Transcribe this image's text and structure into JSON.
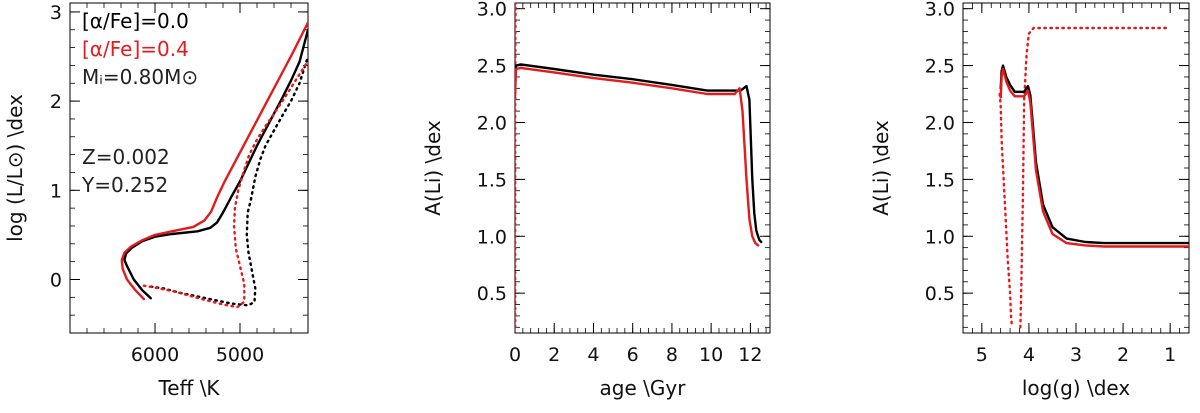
{
  "chart_data": [
    {
      "type": "line",
      "xlabel": "Teff \\K",
      "ylabel": "log (L/L⊙) \\dex",
      "xlim": [
        7000,
        4200
      ],
      "ylim": [
        -0.6,
        3.1
      ],
      "xticks": [
        6000,
        5000
      ],
      "yticks": [
        0,
        1,
        2,
        3
      ],
      "colors": {
        "black": "#000000",
        "red": "#e41a1c"
      },
      "annotations": [
        {
          "text": "[α/Fe]=0.0",
          "color": "#000000"
        },
        {
          "text": "[α/Fe]=0.4",
          "color": "#e41a1c"
        },
        {
          "text": "Mᵢ=0.80M⊙",
          "color": "#222222"
        },
        {
          "text": "Z=0.002",
          "color": "#222222"
        },
        {
          "text": "Y=0.252",
          "color": "#222222"
        }
      ],
      "series": [
        {
          "color": "#000000",
          "dash": "solid",
          "x": [
            6050,
            6150,
            6250,
            6330,
            6360,
            6340,
            6280,
            6150,
            6000,
            5800,
            5500,
            5350,
            5270,
            5200,
            5100,
            5000,
            4900,
            4800,
            4700,
            4600,
            4500,
            4400,
            4300,
            4200
          ],
          "y": [
            -0.21,
            -0.12,
            0.0,
            0.15,
            0.22,
            0.29,
            0.35,
            0.43,
            0.48,
            0.51,
            0.54,
            0.58,
            0.64,
            0.75,
            0.93,
            1.1,
            1.3,
            1.5,
            1.68,
            1.86,
            2.04,
            2.23,
            2.44,
            2.8
          ]
        },
        {
          "color": "#000000",
          "dash": "dotted",
          "x": [
            6050,
            5900,
            5700,
            5400,
            5100,
            4900,
            4830,
            4820,
            4860,
            4900,
            4920,
            4910,
            4870,
            4820,
            4760,
            4700,
            4600,
            4500,
            4400,
            4300,
            4200
          ],
          "y": [
            -0.08,
            -0.1,
            -0.15,
            -0.21,
            -0.27,
            -0.29,
            -0.25,
            -0.1,
            0.1,
            0.3,
            0.5,
            0.75,
            0.9,
            1.15,
            1.35,
            1.5,
            1.67,
            1.84,
            2.0,
            2.2,
            2.5
          ]
        },
        {
          "color": "#e41a1c",
          "dash": "solid",
          "x": [
            6130,
            6230,
            6330,
            6380,
            6390,
            6360,
            6280,
            6150,
            6000,
            5800,
            5550,
            5420,
            5340,
            5270,
            5180,
            5080,
            4980,
            4880,
            4780,
            4680,
            4580,
            4480,
            4380,
            4280,
            4200
          ],
          "y": [
            -0.22,
            -0.12,
            0.0,
            0.12,
            0.22,
            0.3,
            0.37,
            0.44,
            0.5,
            0.54,
            0.59,
            0.66,
            0.76,
            0.92,
            1.1,
            1.28,
            1.46,
            1.64,
            1.82,
            2.0,
            2.18,
            2.36,
            2.54,
            2.73,
            2.88
          ]
        },
        {
          "color": "#e41a1c",
          "dash": "dotted",
          "x": [
            6130,
            5950,
            5750,
            5450,
            5200,
            5030,
            4950,
            4950,
            5000,
            5050,
            5070,
            5060,
            5020,
            4960,
            4890,
            4800,
            4700,
            4600,
            4500,
            4400,
            4300,
            4200
          ],
          "y": [
            -0.07,
            -0.1,
            -0.14,
            -0.22,
            -0.28,
            -0.31,
            -0.25,
            -0.05,
            0.15,
            0.35,
            0.6,
            0.8,
            1.0,
            1.2,
            1.4,
            1.57,
            1.72,
            1.86,
            2.0,
            2.15,
            2.3,
            2.45
          ]
        }
      ]
    },
    {
      "type": "line",
      "xlabel": "age \\Gyr",
      "ylabel": "A(Li) \\dex",
      "xlim": [
        0,
        13.0
      ],
      "ylim": [
        0.15,
        3.05
      ],
      "xticks": [
        0,
        2,
        4,
        6,
        8,
        10,
        12
      ],
      "yticks": [
        0.5,
        1.0,
        1.5,
        2.0,
        2.5,
        3.0
      ],
      "series": [
        {
          "color": "#e41a1c",
          "dash": "dotted",
          "x": [
            0.01,
            0.01,
            0.02,
            0.03,
            0.04
          ],
          "y": [
            0.2,
            2.0,
            2.8,
            3.0,
            3.05
          ]
        },
        {
          "color": "#000000",
          "dash": "solid",
          "x": [
            0.0,
            0.05,
            0.3,
            2,
            4,
            6,
            8,
            9.8,
            11.5,
            11.8,
            11.95,
            12.1,
            12.2,
            12.3,
            12.45,
            12.55
          ],
          "y": [
            2.3,
            2.5,
            2.51,
            2.47,
            2.42,
            2.38,
            2.33,
            2.28,
            2.28,
            2.32,
            2.2,
            1.5,
            1.2,
            1.05,
            0.97,
            0.95
          ]
        },
        {
          "color": "#e41a1c",
          "dash": "solid",
          "x": [
            0.0,
            0.05,
            0.3,
            2,
            4,
            6,
            8,
            9.8,
            11.2,
            11.45,
            11.6,
            11.8,
            11.95,
            12.1,
            12.25,
            12.4
          ],
          "y": [
            2.22,
            2.47,
            2.48,
            2.44,
            2.39,
            2.35,
            2.3,
            2.25,
            2.25,
            2.3,
            2.1,
            1.5,
            1.15,
            1.0,
            0.94,
            0.92
          ]
        }
      ]
    },
    {
      "type": "line",
      "xlabel": "log(g) \\dex",
      "ylabel": "A(Li) \\dex",
      "xlim": [
        5.4,
        0.6
      ],
      "ylim": [
        0.15,
        3.05
      ],
      "xticks": [
        5,
        4,
        3,
        2,
        1
      ],
      "yticks": [
        0.5,
        1.0,
        1.5,
        2.0,
        2.5,
        3.0
      ],
      "series": [
        {
          "color": "#e41a1c",
          "dash": "dotted",
          "x": [
            4.62,
            4.6,
            4.58,
            4.5,
            4.45,
            4.4,
            4.38,
            4.36
          ],
          "y": [
            2.25,
            2.15,
            1.85,
            1.2,
            0.8,
            0.5,
            0.3,
            0.2
          ]
        },
        {
          "color": "#e41a1c",
          "dash": "dotted",
          "x": [
            4.18,
            4.16,
            4.13,
            4.1,
            4.05,
            4.0,
            3.9,
            3.7,
            3.4,
            3.0,
            2.5,
            2.0,
            1.5,
            1.0
          ],
          "y": [
            0.2,
            0.6,
            1.3,
            2.2,
            2.6,
            2.78,
            2.83,
            2.83,
            2.83,
            2.83,
            2.83,
            2.83,
            2.83,
            2.83
          ]
        },
        {
          "color": "#000000",
          "dash": "solid",
          "x": [
            4.6,
            4.58,
            4.55,
            4.48,
            4.4,
            4.3,
            4.2,
            4.1,
            4.02,
            3.97,
            3.93,
            3.85,
            3.7,
            3.5,
            3.2,
            2.8,
            2.4,
            2.0,
            1.5,
            1.0,
            0.5
          ],
          "y": [
            2.3,
            2.45,
            2.5,
            2.4,
            2.33,
            2.27,
            2.27,
            2.27,
            2.32,
            2.24,
            2.05,
            1.65,
            1.28,
            1.08,
            0.98,
            0.95,
            0.94,
            0.94,
            0.94,
            0.94,
            0.94
          ]
        },
        {
          "color": "#e41a1c",
          "dash": "solid",
          "x": [
            4.6,
            4.58,
            4.55,
            4.48,
            4.4,
            4.3,
            4.2,
            4.1,
            4.02,
            3.97,
            3.93,
            3.85,
            3.7,
            3.5,
            3.2,
            2.8,
            2.4,
            2.0,
            1.5,
            1.0,
            0.5
          ],
          "y": [
            2.22,
            2.4,
            2.47,
            2.36,
            2.28,
            2.23,
            2.23,
            2.23,
            2.28,
            2.18,
            1.98,
            1.58,
            1.22,
            1.02,
            0.94,
            0.92,
            0.91,
            0.91,
            0.91,
            0.91,
            0.91
          ]
        }
      ]
    }
  ]
}
